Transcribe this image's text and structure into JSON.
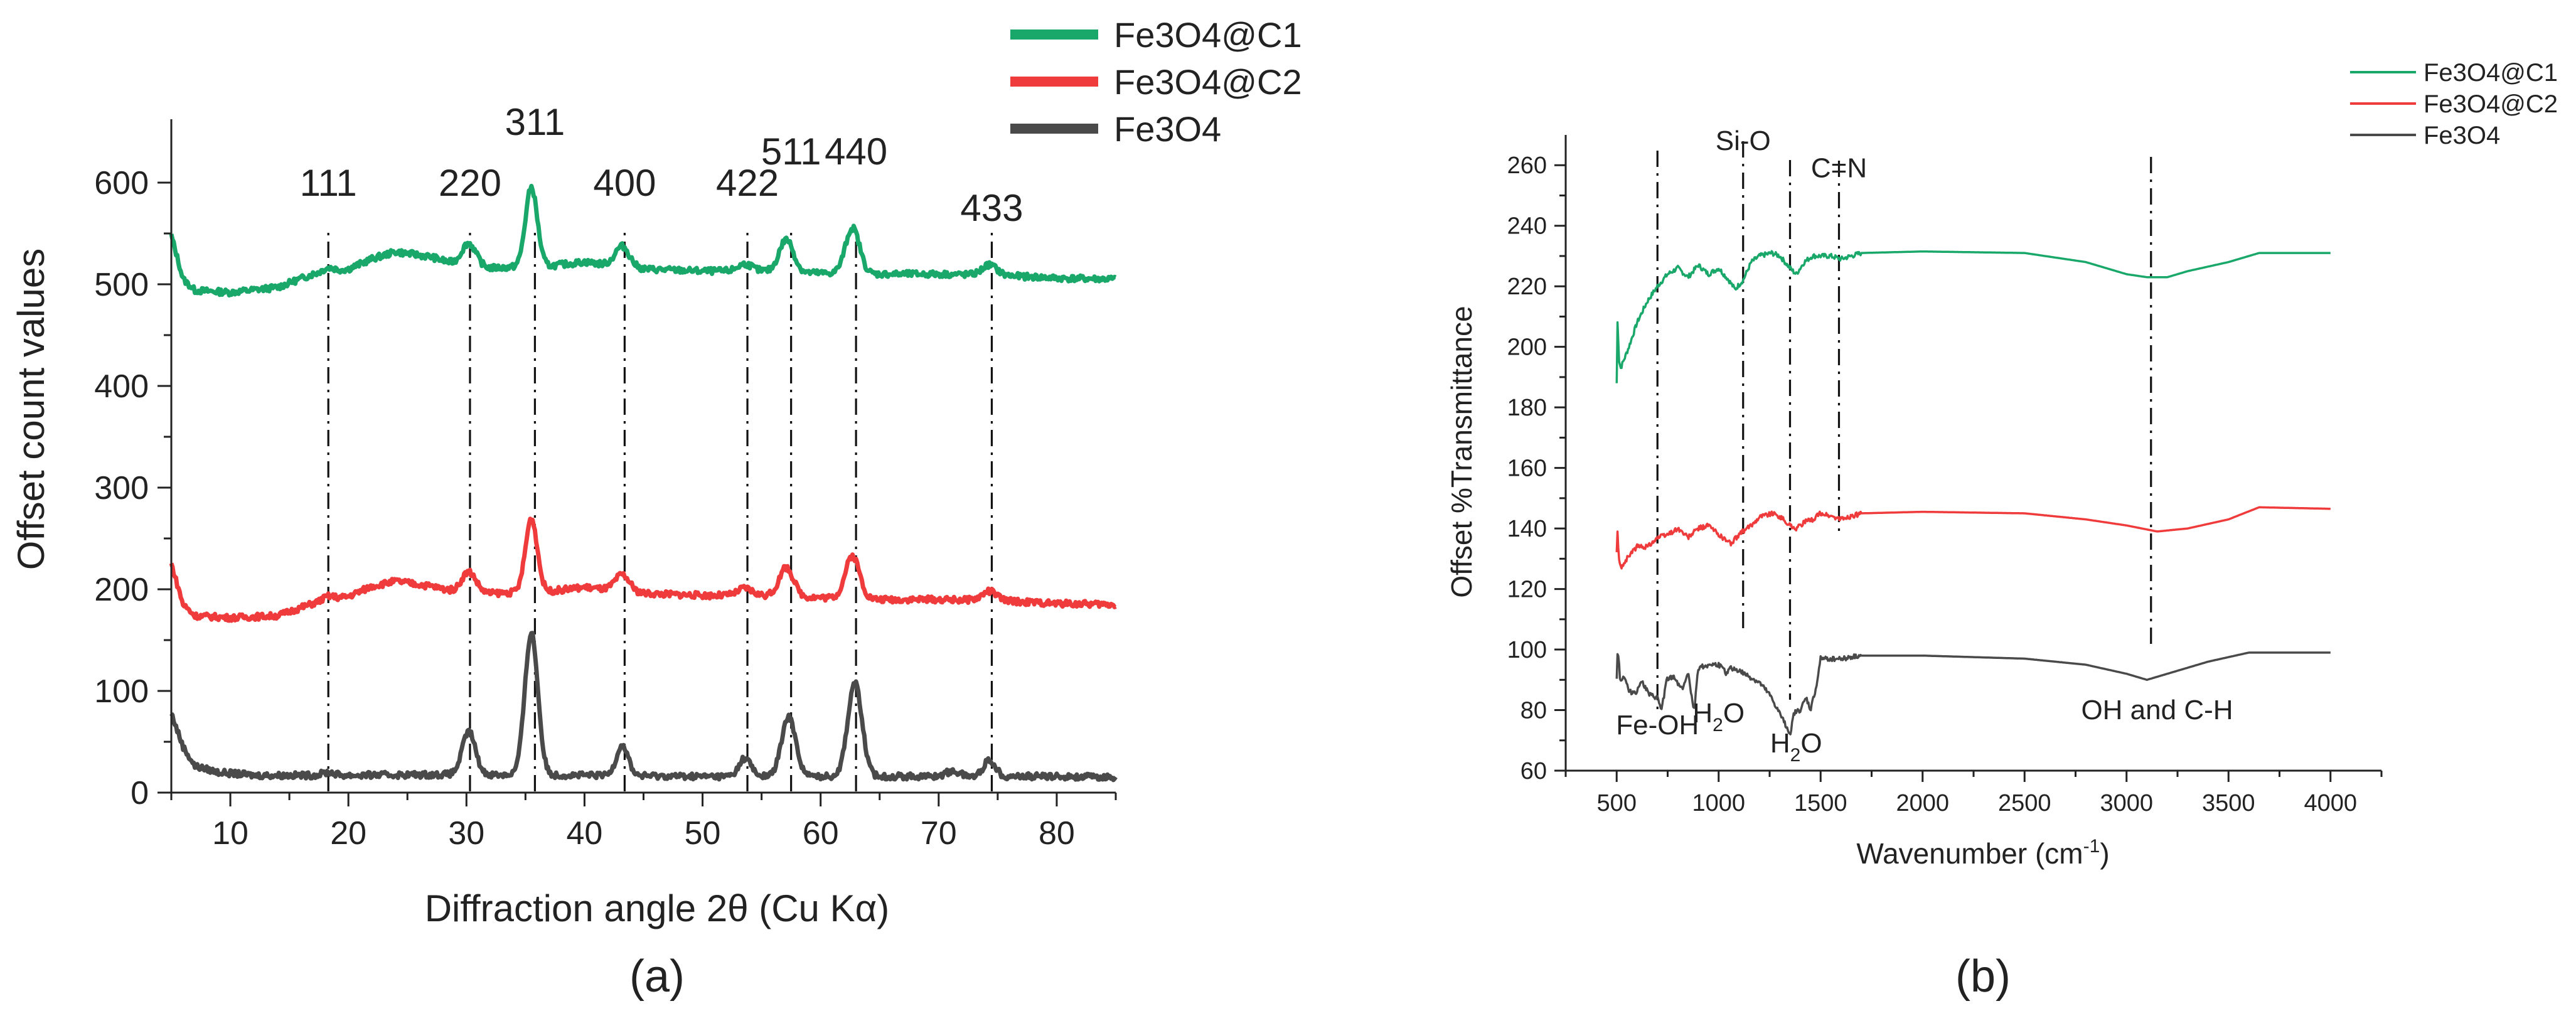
{
  "chart_data": [
    {
      "id": "a",
      "type": "line",
      "panel_label": "(a)",
      "title": "",
      "xlabel": "Diffraction angle 2θ (Cu Kα)",
      "ylabel": "Offset count values",
      "xlim": [
        5,
        85
      ],
      "ylim": [
        0,
        650
      ],
      "xticks": [
        10,
        20,
        30,
        40,
        50,
        60,
        70,
        80
      ],
      "yticks": [
        0,
        100,
        200,
        300,
        400,
        500,
        600
      ],
      "legend_position": "top-right",
      "series": [
        {
          "name": "Fe3O4@C1",
          "color": "#1aa86a",
          "baseline": [
            [
              5,
              548
            ],
            [
              6,
              505
            ],
            [
              7,
              494
            ],
            [
              10,
              492
            ],
            [
              14,
              497
            ],
            [
              17,
              510
            ],
            [
              20,
              515
            ],
            [
              22,
              525
            ],
            [
              24,
              532
            ],
            [
              27,
              527
            ],
            [
              29,
              520
            ],
            [
              32,
              516
            ],
            [
              37,
              518
            ],
            [
              40,
              522
            ],
            [
              45,
              515
            ],
            [
              50,
              513
            ],
            [
              55,
              513
            ],
            [
              60,
              511
            ],
            [
              65,
              510
            ],
            [
              70,
              510
            ],
            [
              75,
              509
            ],
            [
              80,
              506
            ],
            [
              85,
              505
            ]
          ],
          "peaks": [
            [
              18.3,
              4,
              0.5
            ],
            [
              30.2,
              22,
              0.6
            ],
            [
              35.5,
              78,
              0.5
            ],
            [
              43.2,
              20,
              0.6
            ],
            [
              53.6,
              7,
              0.6
            ],
            [
              57.1,
              32,
              0.6
            ],
            [
              62.7,
              45,
              0.6
            ],
            [
              74.3,
              10,
              0.6
            ]
          ]
        },
        {
          "name": "Fe3O4@C2",
          "color": "#ef3b3b",
          "baseline": [
            [
              5,
              225
            ],
            [
              6,
              185
            ],
            [
              7,
              174
            ],
            [
              10,
              172
            ],
            [
              14,
              174
            ],
            [
              17,
              186
            ],
            [
              20,
              193
            ],
            [
              22,
              203
            ],
            [
              24,
              208
            ],
            [
              27,
              203
            ],
            [
              29,
              198
            ],
            [
              32,
              196
            ],
            [
              37,
              198
            ],
            [
              40,
              202
            ],
            [
              45,
              196
            ],
            [
              50,
              194
            ],
            [
              55,
              194
            ],
            [
              60,
              192
            ],
            [
              65,
              190
            ],
            [
              70,
              190
            ],
            [
              75,
              189
            ],
            [
              80,
              186
            ],
            [
              85,
              185
            ]
          ],
          "peaks": [
            [
              18.3,
              4,
              0.5
            ],
            [
              30.2,
              20,
              0.6
            ],
            [
              35.5,
              72,
              0.5
            ],
            [
              43.2,
              16,
              0.6
            ],
            [
              53.6,
              7,
              0.6
            ],
            [
              57.1,
              28,
              0.6
            ],
            [
              62.7,
              42,
              0.6
            ],
            [
              74.3,
              9,
              0.6
            ]
          ]
        },
        {
          "name": "Fe3O4",
          "color": "#4a4a4a",
          "baseline": [
            [
              5,
              78
            ],
            [
              6,
              45
            ],
            [
              7,
              26
            ],
            [
              9,
              20
            ],
            [
              12,
              17
            ],
            [
              20,
              17
            ],
            [
              30,
              18
            ],
            [
              40,
              17
            ],
            [
              50,
              16
            ],
            [
              60,
              16
            ],
            [
              70,
              16
            ],
            [
              80,
              16
            ],
            [
              85,
              15
            ]
          ],
          "peaks": [
            [
              18.3,
              3,
              0.5
            ],
            [
              30.2,
              42,
              0.55
            ],
            [
              35.5,
              140,
              0.55
            ],
            [
              43.2,
              30,
              0.5
            ],
            [
              53.6,
              18,
              0.5
            ],
            [
              57.3,
              58,
              0.6
            ],
            [
              62.9,
              92,
              0.6
            ],
            [
              71.2,
              5,
              0.6
            ],
            [
              74.3,
              16,
              0.5
            ]
          ]
        }
      ],
      "reflections": [
        {
          "label": "111",
          "x": 18.3
        },
        {
          "label": "220",
          "x": 30.3
        },
        {
          "label": "311",
          "x": 35.8
        },
        {
          "label": "400",
          "x": 43.4
        },
        {
          "label": "422",
          "x": 53.8
        },
        {
          "label": "511",
          "x": 57.5
        },
        {
          "label": "440",
          "x": 63.0
        },
        {
          "label": "433",
          "x": 74.5
        }
      ]
    },
    {
      "id": "b",
      "type": "line",
      "panel_label": "(b)",
      "title": "",
      "xlabel": "Wavenumber (cm",
      "xlabel_sup": "-1",
      "xlabel_end": ")",
      "ylabel": "Offset %Transmittance",
      "xlim": [
        250,
        4250
      ],
      "ylim": [
        60,
        270
      ],
      "xticks": [
        500,
        1000,
        1500,
        2000,
        2500,
        3000,
        3500,
        4000
      ],
      "yticks": [
        60,
        80,
        100,
        120,
        140,
        160,
        180,
        200,
        220,
        240,
        260
      ],
      "legend_position": "top-right",
      "series": [
        {
          "name": "Fe3O4@C1",
          "color": "#1aa86a",
          "points": [
            [
              500,
              188
            ],
            [
              505,
              213
            ],
            [
              510,
              196
            ],
            [
              520,
              193
            ],
            [
              560,
              200
            ],
            [
              600,
              208
            ],
            [
              650,
              215
            ],
            [
              700,
              220
            ],
            [
              750,
              224
            ],
            [
              800,
              226
            ],
            [
              850,
              223
            ],
            [
              900,
              227
            ],
            [
              950,
              224
            ],
            [
              1000,
              226
            ],
            [
              1050,
              222
            ],
            [
              1080,
              219
            ],
            [
              1120,
              222
            ],
            [
              1160,
              228
            ],
            [
              1200,
              230
            ],
            [
              1260,
              231
            ],
            [
              1300,
              230
            ],
            [
              1350,
              226
            ],
            [
              1380,
              224
            ],
            [
              1420,
              228
            ],
            [
              1460,
              230
            ],
            [
              1500,
              230
            ],
            [
              1550,
              230
            ],
            [
              1600,
              229
            ],
            [
              1650,
              230
            ],
            [
              1700,
              231
            ],
            [
              2000,
              231.5
            ],
            [
              2500,
              231
            ],
            [
              2800,
              228
            ],
            [
              3000,
              224
            ],
            [
              3100,
              223
            ],
            [
              3200,
              223
            ],
            [
              3300,
              225
            ],
            [
              3500,
              228
            ],
            [
              3650,
              231
            ],
            [
              4000,
              231
            ]
          ]
        },
        {
          "name": "Fe3O4@C2",
          "color": "#ef3b3b",
          "points": [
            [
              500,
              132
            ],
            [
              505,
              140
            ],
            [
              510,
              130
            ],
            [
              520,
              127
            ],
            [
              560,
              131
            ],
            [
              600,
              134
            ],
            [
              650,
              134
            ],
            [
              700,
              137
            ],
            [
              750,
              138
            ],
            [
              800,
              140
            ],
            [
              850,
              137
            ],
            [
              900,
              140
            ],
            [
              950,
              141
            ],
            [
              1000,
              138
            ],
            [
              1060,
              135
            ],
            [
              1100,
              138
            ],
            [
              1160,
              141
            ],
            [
              1200,
              144
            ],
            [
              1260,
              145
            ],
            [
              1300,
              144
            ],
            [
              1350,
              141
            ],
            [
              1380,
              140
            ],
            [
              1420,
              142
            ],
            [
              1460,
              143
            ],
            [
              1500,
              145
            ],
            [
              1550,
              144
            ],
            [
              1600,
              143
            ],
            [
              1650,
              144
            ],
            [
              1700,
              145
            ],
            [
              2000,
              145.5
            ],
            [
              2500,
              145
            ],
            [
              2800,
              143
            ],
            [
              3000,
              141
            ],
            [
              3150,
              139
            ],
            [
              3300,
              140
            ],
            [
              3500,
              143
            ],
            [
              3650,
              147
            ],
            [
              4000,
              146.5
            ]
          ]
        },
        {
          "name": "Fe3O4",
          "color": "#4a4a4a",
          "points": [
            [
              500,
              90
            ],
            [
              502,
              107
            ],
            [
              505,
              95
            ],
            [
              510,
              100
            ],
            [
              515,
              90
            ],
            [
              540,
              91
            ],
            [
              560,
              86
            ],
            [
              600,
              86
            ],
            [
              620,
              90
            ],
            [
              660,
              85
            ],
            [
              700,
              84
            ],
            [
              720,
              80
            ],
            [
              745,
              90
            ],
            [
              780,
              91
            ],
            [
              820,
              87
            ],
            [
              850,
              92
            ],
            [
              880,
              80
            ],
            [
              900,
              94
            ],
            [
              950,
              95
            ],
            [
              1000,
              95
            ],
            [
              1040,
              92
            ],
            [
              1060,
              94
            ],
            [
              1100,
              93
            ],
            [
              1150,
              91
            ],
            [
              1200,
              89
            ],
            [
              1250,
              85
            ],
            [
              1290,
              80
            ],
            [
              1330,
              75
            ],
            [
              1350,
              72
            ],
            [
              1370,
              79
            ],
            [
              1400,
              80
            ],
            [
              1430,
              84
            ],
            [
              1450,
              80
            ],
            [
              1480,
              88
            ],
            [
              1500,
              97
            ],
            [
              1550,
              97
            ],
            [
              1600,
              97
            ],
            [
              1700,
              98
            ],
            [
              2000,
              98
            ],
            [
              2500,
              97
            ],
            [
              2800,
              95
            ],
            [
              3000,
              92
            ],
            [
              3100,
              90
            ],
            [
              3200,
              92
            ],
            [
              3400,
              96
            ],
            [
              3600,
              99
            ],
            [
              4000,
              99
            ]
          ]
        }
      ],
      "markers": [
        700,
        1120,
        1350,
        1590,
        3120
      ],
      "annotations": [
        {
          "label": "Si-O",
          "x": 1120,
          "y": 265
        },
        {
          "label": "C=N",
          "x": 1590,
          "y": 256
        },
        {
          "label": "Fe-OH",
          "x": 700,
          "y": 72
        },
        {
          "label": "H",
          "sub": "2",
          "end": "O",
          "x": 1000,
          "y": 76
        },
        {
          "label": "H",
          "sub": "2",
          "end": "O",
          "x": 1380,
          "y": 66
        },
        {
          "label": "OH and C-H",
          "x": 3150,
          "y": 77
        }
      ]
    }
  ]
}
